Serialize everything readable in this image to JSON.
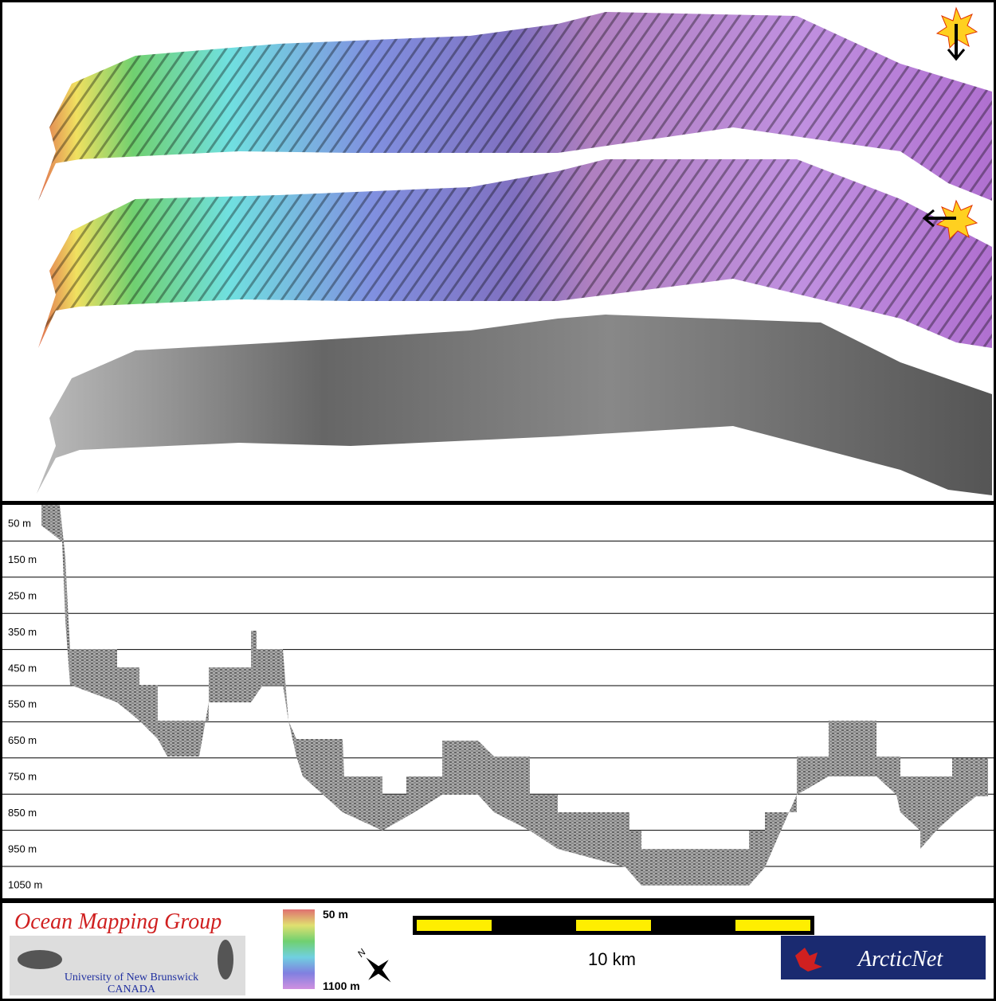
{
  "depth_profile": {
    "labels": [
      "50 m",
      "150 m",
      "250 m",
      "350 m",
      "450 m",
      "550 m",
      "650 m",
      "750 m",
      "850 m",
      "950 m",
      "1050 m"
    ]
  },
  "footer": {
    "logo_title": "Ocean Mapping Group",
    "logo_university": "University of New Brunswick",
    "logo_country": "CANADA",
    "colorbar_top": "50 m",
    "colorbar_bottom": "1100 m",
    "north": "N",
    "scale": "10 km",
    "partner": "ArcticNet"
  }
}
